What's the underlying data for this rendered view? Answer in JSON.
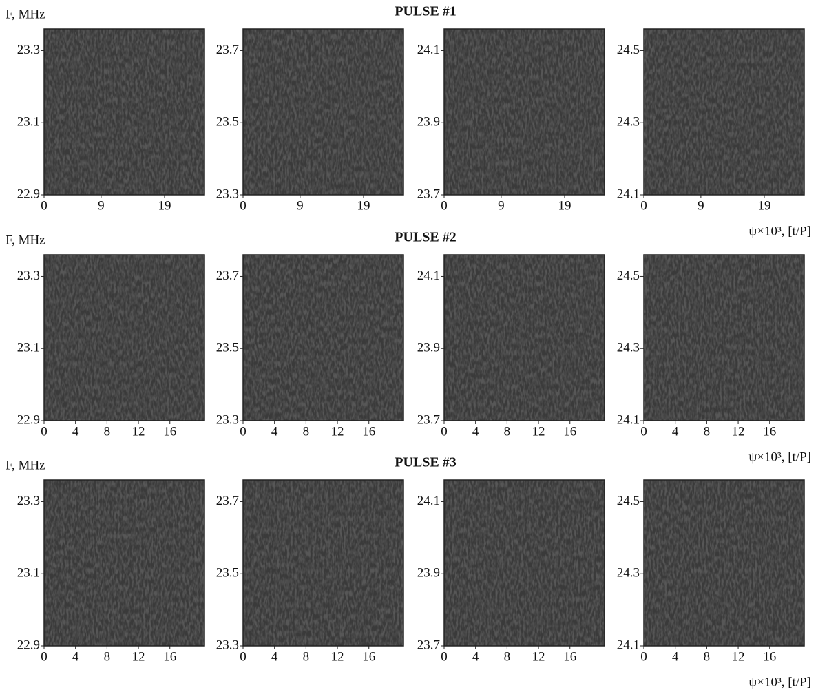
{
  "chart_data": [
    {
      "type": "heatmap",
      "y_label": "F, MHz",
      "xlim": [
        0,
        25.3
      ],
      "xticks": [
        0,
        9,
        19
      ],
      "ylim": [
        22.9,
        23.36
      ],
      "yticks": [
        22.9,
        23.1,
        23.3
      ]
    },
    {
      "type": "heatmap",
      "xlim": [
        0,
        25.3
      ],
      "xticks": [
        0,
        9,
        19
      ],
      "ylim": [
        23.3,
        23.76
      ],
      "yticks": [
        23.3,
        23.5,
        23.7
      ]
    },
    {
      "type": "heatmap",
      "title": "PULSE #1",
      "xlim": [
        0,
        25.3
      ],
      "xticks": [
        0,
        9,
        19
      ],
      "ylim": [
        23.7,
        24.16
      ],
      "yticks": [
        23.7,
        23.9,
        24.1
      ]
    },
    {
      "type": "heatmap",
      "x_label": "ψ×10³, [t/P]",
      "xlim": [
        0,
        25.3
      ],
      "xticks": [
        0,
        9,
        19
      ],
      "ylim": [
        24.1,
        24.56
      ],
      "yticks": [
        24.1,
        24.3,
        24.5
      ]
    },
    {
      "type": "heatmap",
      "y_label": "F, MHz",
      "xlim": [
        0,
        20.4
      ],
      "xticks": [
        0,
        4,
        8,
        12,
        16
      ],
      "ylim": [
        22.9,
        23.36
      ],
      "yticks": [
        22.9,
        23.1,
        23.3
      ]
    },
    {
      "type": "heatmap",
      "xlim": [
        0,
        20.4
      ],
      "xticks": [
        0,
        4,
        8,
        12,
        16
      ],
      "ylim": [
        23.3,
        23.76
      ],
      "yticks": [
        23.3,
        23.5,
        23.7
      ]
    },
    {
      "type": "heatmap",
      "title": "PULSE #2",
      "xlim": [
        0,
        20.4
      ],
      "xticks": [
        0,
        4,
        8,
        12,
        16
      ],
      "ylim": [
        23.7,
        24.16
      ],
      "yticks": [
        23.7,
        23.9,
        24.1
      ]
    },
    {
      "type": "heatmap",
      "x_label": "ψ×10³, [t/P]",
      "xlim": [
        0,
        20.4
      ],
      "xticks": [
        0,
        4,
        8,
        12,
        16
      ],
      "ylim": [
        24.1,
        24.56
      ],
      "yticks": [
        24.1,
        24.3,
        24.5
      ]
    },
    {
      "type": "heatmap",
      "y_label": "F, MHz",
      "xlim": [
        0,
        20.4
      ],
      "xticks": [
        0,
        4,
        8,
        12,
        16
      ],
      "ylim": [
        22.9,
        23.36
      ],
      "yticks": [
        22.9,
        23.1,
        23.3
      ]
    },
    {
      "type": "heatmap",
      "xlim": [
        0,
        20.4
      ],
      "xticks": [
        0,
        4,
        8,
        12,
        16
      ],
      "ylim": [
        23.3,
        23.76
      ],
      "yticks": [
        23.3,
        23.5,
        23.7
      ]
    },
    {
      "type": "heatmap",
      "title": "PULSE #3",
      "xlim": [
        0,
        20.4
      ],
      "xticks": [
        0,
        4,
        8,
        12,
        16
      ],
      "ylim": [
        23.7,
        24.16
      ],
      "yticks": [
        23.7,
        23.9,
        24.1
      ]
    },
    {
      "type": "heatmap",
      "x_label": "ψ×10³, [t/P]",
      "xlim": [
        0,
        20.4
      ],
      "xticks": [
        0,
        4,
        8,
        12,
        16
      ],
      "ylim": [
        24.1,
        24.56
      ],
      "yticks": [
        24.1,
        24.3,
        24.5
      ]
    }
  ]
}
